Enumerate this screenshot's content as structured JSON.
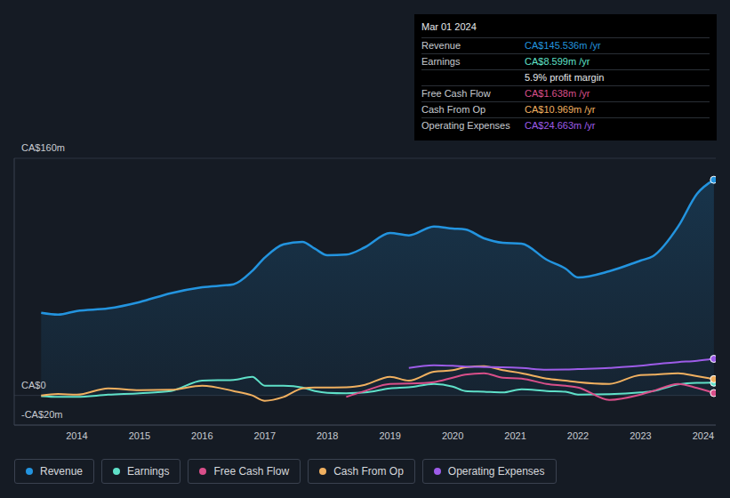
{
  "chart_data": {
    "type": "line",
    "x": [
      2013.43,
      2013.7,
      2014.0,
      2014.5,
      2015.0,
      2015.5,
      2016.0,
      2016.5,
      2016.8,
      2017.0,
      2017.3,
      2017.6,
      2017.8,
      2018.0,
      2018.3,
      2018.6,
      2019.0,
      2019.3,
      2019.7,
      2020.0,
      2020.2,
      2020.5,
      2020.8,
      2021.1,
      2021.5,
      2021.8,
      2022.0,
      2022.5,
      2023.0,
      2023.2,
      2023.6,
      2023.9,
      2024.17
    ],
    "xlim": [
      2013,
      2024.2
    ],
    "xticks": [
      2014,
      2015,
      2016,
      2017,
      2018,
      2019,
      2020,
      2021,
      2022,
      2023,
      2024
    ],
    "ylim": [
      -20,
      160
    ],
    "yticks": [
      {
        "value": -20,
        "label": "-CA$20m"
      },
      {
        "value": 0,
        "label": "CA$0"
      },
      {
        "value": 160,
        "label": "CA$160m"
      }
    ],
    "grid": true,
    "legend": "bottom",
    "series": [
      {
        "name": "Revenue",
        "color": "#2394df",
        "type": "area",
        "values": [
          55.7,
          54.5,
          57,
          58.7,
          63,
          69,
          73,
          75,
          84,
          93,
          102,
          103.6,
          99,
          94.6,
          95,
          100,
          109.6,
          108,
          114,
          112.6,
          112,
          106,
          103,
          102.4,
          91.6,
          85.6,
          79.6,
          83.8,
          91,
          94,
          114,
          136,
          145.5
        ]
      },
      {
        "name": "Earnings",
        "color": "#5fe0c8",
        "type": "line",
        "values": [
          -0.5,
          -1,
          -1,
          0.5,
          1.5,
          3,
          10,
          10.5,
          12.6,
          6.6,
          6.5,
          5.4,
          3,
          1.8,
          1.5,
          2,
          4.8,
          5.5,
          7.8,
          6,
          3,
          2.5,
          2,
          4.2,
          3,
          2.5,
          0.6,
          0.8,
          2,
          3,
          7.5,
          8.5,
          8.6
        ]
      },
      {
        "name": "Free Cash Flow",
        "color": "#d94f8a",
        "type": "line",
        "values": [
          null,
          null,
          null,
          null,
          null,
          null,
          null,
          null,
          null,
          null,
          null,
          null,
          null,
          null,
          -1,
          3,
          7.8,
          8,
          9,
          12,
          14,
          15,
          12,
          11.4,
          7.8,
          6.5,
          5.4,
          -3,
          0.6,
          3,
          7.8,
          5,
          1.6
        ]
      },
      {
        "name": "Cash From Op",
        "color": "#f0b060",
        "type": "line",
        "values": [
          0,
          1,
          0.5,
          4.8,
          3.6,
          3.8,
          6.6,
          3,
          0,
          -3.6,
          -1,
          4.8,
          5.4,
          5.4,
          5.5,
          7.2,
          12.6,
          10,
          16,
          17,
          19,
          19.8,
          17,
          15,
          11.4,
          10,
          9,
          7.8,
          13.8,
          14,
          15,
          13,
          11
        ]
      },
      {
        "name": "Operating Expenses",
        "color": "#9d5ce8",
        "type": "line",
        "values": [
          null,
          null,
          null,
          null,
          null,
          null,
          null,
          null,
          null,
          null,
          null,
          null,
          null,
          null,
          null,
          null,
          null,
          18.6,
          20.4,
          20,
          19.5,
          19.2,
          19,
          18.5,
          17.4,
          17.5,
          17.8,
          18.6,
          20,
          21,
          22.5,
          23.4,
          24.7
        ]
      }
    ]
  },
  "tooltip": {
    "date": "Mar 01 2024",
    "rows": [
      {
        "label": "Revenue",
        "value": "CA$145.536m /yr",
        "color": "#2394df"
      },
      {
        "label": "Earnings",
        "value": "CA$8.599m /yr",
        "color": "#5fe0c8"
      },
      {
        "value": "5.9% profit margin",
        "color": "#e6e8eb"
      },
      {
        "label": "Free Cash Flow",
        "value": "CA$1.638m /yr",
        "color": "#d94f8a"
      },
      {
        "label": "Cash From Op",
        "value": "CA$10.969m /yr",
        "color": "#f0b060"
      },
      {
        "label": "Operating Expenses",
        "value": "CA$24.663m /yr",
        "color": "#9d5ce8"
      }
    ]
  }
}
